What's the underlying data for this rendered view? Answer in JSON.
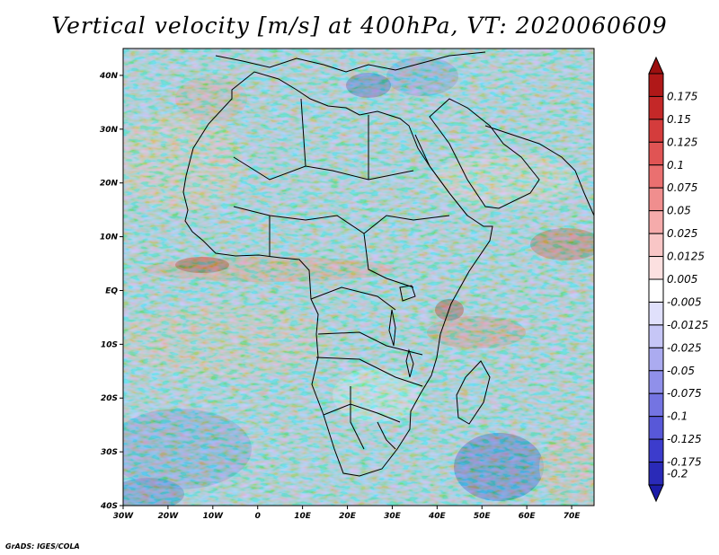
{
  "title": "Vertical velocity [m/s] at 400hPa, VT: 2020060609",
  "footer": "GrADS: IGES/COLA",
  "map": {
    "lon_range": [
      -30,
      75
    ],
    "lat_range": [
      -40,
      45
    ],
    "x_ticks": [
      {
        "lon": -30,
        "label": "30W"
      },
      {
        "lon": -20,
        "label": "20W"
      },
      {
        "lon": -10,
        "label": "10W"
      },
      {
        "lon": 0,
        "label": "0"
      },
      {
        "lon": 10,
        "label": "10E"
      },
      {
        "lon": 20,
        "label": "20E"
      },
      {
        "lon": 30,
        "label": "30E"
      },
      {
        "lon": 40,
        "label": "40E"
      },
      {
        "lon": 50,
        "label": "50E"
      },
      {
        "lon": 60,
        "label": "60E"
      },
      {
        "lon": 70,
        "label": "70E"
      }
    ],
    "y_ticks": [
      {
        "lat": 40,
        "label": "40N"
      },
      {
        "lat": 30,
        "label": "30N"
      },
      {
        "lat": 20,
        "label": "20N"
      },
      {
        "lat": 10,
        "label": "10N"
      },
      {
        "lat": 0,
        "label": "EQ"
      },
      {
        "lat": -10,
        "label": "10S"
      },
      {
        "lat": -20,
        "label": "20S"
      },
      {
        "lat": -30,
        "label": "30S"
      },
      {
        "lat": -40,
        "label": "40S"
      }
    ]
  },
  "colorbar": {
    "levels": [
      {
        "label": "0.175",
        "color": "#b01818"
      },
      {
        "label": "0.15",
        "color": "#c42828"
      },
      {
        "label": "0.125",
        "color": "#d43c3c"
      },
      {
        "label": "0.1",
        "color": "#e05454"
      },
      {
        "label": "0.075",
        "color": "#ea7070"
      },
      {
        "label": "0.05",
        "color": "#f08e8e"
      },
      {
        "label": "0.025",
        "color": "#f5abab"
      },
      {
        "label": "0.0125",
        "color": "#f9c6c6"
      },
      {
        "label": "0.005",
        "color": "#fce0e0"
      },
      {
        "label": "-0.005",
        "color": "#ffffff"
      },
      {
        "label": "-0.0125",
        "color": "#e0e0fb"
      },
      {
        "label": "-0.025",
        "color": "#c6c6f6"
      },
      {
        "label": "-0.05",
        "color": "#ababf0"
      },
      {
        "label": "-0.075",
        "color": "#9090ea"
      },
      {
        "label": "-0.1",
        "color": "#7474e2"
      },
      {
        "label": "-0.125",
        "color": "#5858d8"
      },
      {
        "label": "-0.175",
        "color": "#3c3ccc"
      },
      {
        "label": "-0.2",
        "color": "#2a2ab8"
      }
    ],
    "top_arrow_color": "#9c1010",
    "bottom_arrow_color": "#1c1ca8"
  }
}
